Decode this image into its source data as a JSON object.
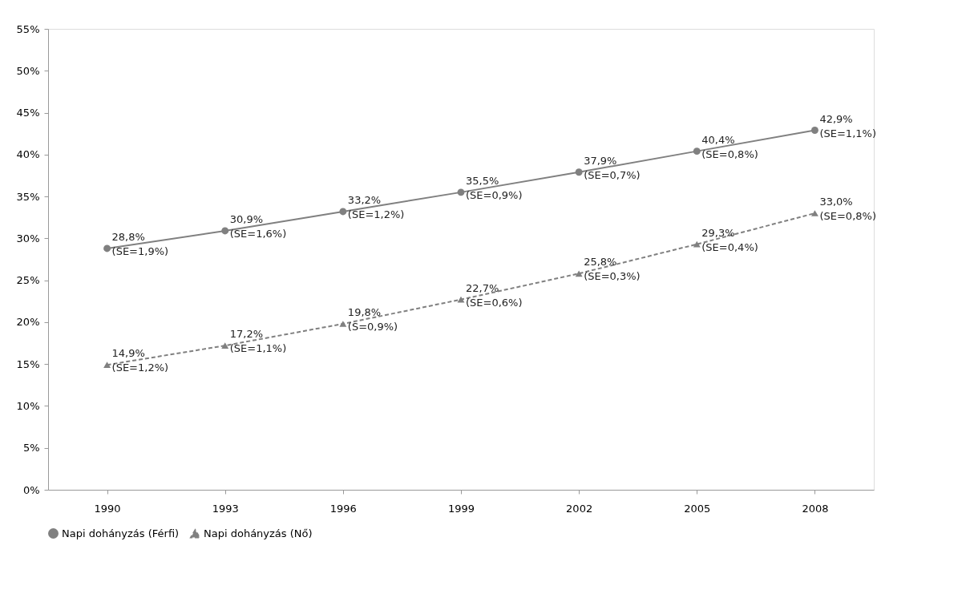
{
  "chart_data": {
    "type": "line",
    "categories": [
      "1990",
      "1993",
      "1996",
      "1999",
      "2002",
      "2005",
      "2008"
    ],
    "series": [
      {
        "name": "Napi dohányzás (Férfi)",
        "color": "#808080",
        "marker": "circle",
        "line_style": "solid",
        "values": [
          28.8,
          30.9,
          33.2,
          35.5,
          37.9,
          40.4,
          42.9
        ],
        "value_labels": [
          "28,8%\n(SE=1,9%)",
          "30,9%\n(SE=1,6%)",
          "33,2%\n(SE=1,2%)",
          "35,5%\n(SE=0,9%)",
          "37,9%\n(SE=0,7%)",
          "40,4%\n(SE=0,8%)",
          "42,9%\n(SE=1,1%)"
        ]
      },
      {
        "name": "Napi dohányzás (Nő)",
        "color": "#808080",
        "marker": "triangle",
        "line_style": "dashed",
        "values": [
          14.9,
          17.2,
          19.8,
          22.7,
          25.8,
          29.3,
          33.0
        ],
        "value_labels": [
          "14,9%\n(SE=1,2%)",
          "17,2%\n(SE=1,1%)",
          "19,8%\n(S=0,9%)",
          "22,7%\n(SE=0,6%)",
          "25,8%\n(SE=0,3%)",
          "29,3%\n(SE=0,4%)",
          "33,0%\n(SE=0,8%)"
        ]
      }
    ],
    "ylim": [
      0,
      55
    ],
    "yticks": [
      {
        "value": 0,
        "label": "0%"
      },
      {
        "value": 5,
        "label": "5%"
      },
      {
        "value": 10,
        "label": "10%"
      },
      {
        "value": 15,
        "label": "15%"
      },
      {
        "value": 20,
        "label": "20%"
      },
      {
        "value": 25,
        "label": "25%"
      },
      {
        "value": 30,
        "label": "30%"
      },
      {
        "value": 35,
        "label": "35%"
      },
      {
        "value": 40,
        "label": "40%"
      },
      {
        "value": 45,
        "label": "45%"
      },
      {
        "value": 50,
        "label": "50%"
      },
      {
        "value": 55,
        "label": "55%"
      }
    ],
    "grid": false,
    "legend": "bottom"
  }
}
